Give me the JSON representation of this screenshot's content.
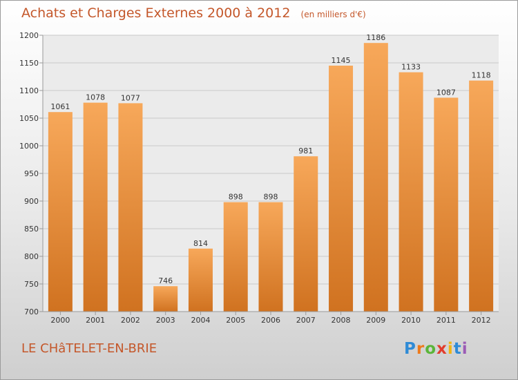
{
  "title": "Achats et Charges Externes 2000 à 2012",
  "unit_note": "(en milliers d'€)",
  "city": "LE CHâTELET-EN-BRIE",
  "logo_text": "Proxiti",
  "colors": {
    "title": "#c4572a",
    "bar_light": "#f7a85a",
    "bar_dark": "#d07220",
    "grid": "#c8c8c8"
  },
  "chart_data": {
    "type": "bar",
    "title": "Achats et Charges Externes 2000 à 2012",
    "xlabel": "",
    "ylabel": "",
    "categories": [
      "2000",
      "2001",
      "2002",
      "2003",
      "2004",
      "2005",
      "2006",
      "2007",
      "2008",
      "2009",
      "2010",
      "2011",
      "2012"
    ],
    "values": [
      1061,
      1078,
      1077,
      746,
      814,
      898,
      898,
      981,
      1145,
      1186,
      1133,
      1087,
      1118
    ],
    "ylim": [
      700,
      1200
    ],
    "yticks": [
      700,
      750,
      800,
      850,
      900,
      950,
      1000,
      1050,
      1100,
      1150,
      1200
    ],
    "grid": true,
    "data_labels": true
  }
}
